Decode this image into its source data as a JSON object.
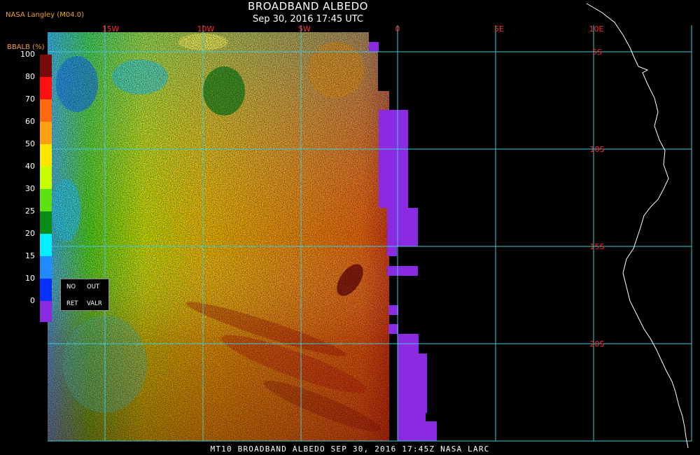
{
  "header": {
    "title": "BROADBAND ALBEDO",
    "subtitle": "Sep 30, 2016 17:45 UTC",
    "producer": "NASA Langley (M04.0)"
  },
  "footer": {
    "text": "MT10  BROADBAND ALBEDO  SEP 30, 2016 17:45Z  NASA LARC"
  },
  "grid": {
    "longitude_labels": [
      "15W",
      "10W",
      "5W",
      "0",
      "5E",
      "10E"
    ],
    "latitude_labels": [
      "5S",
      "10S",
      "15S",
      "20S"
    ]
  },
  "colorbar": {
    "title": "BBALB (%)",
    "ticks": [
      "100",
      "80",
      "70",
      "60",
      "50",
      "40",
      "30",
      "25",
      "20",
      "15",
      "10",
      "0"
    ],
    "colors": [
      "#7a0a0a",
      "#ff1010",
      "#ff6a10",
      "#ffa010",
      "#ffe800",
      "#c8ff00",
      "#5fe010",
      "#0a8c1a",
      "#00f0ff",
      "#1e8cff",
      "#0a30ff",
      "#8a2be2"
    ]
  },
  "legend": {
    "no_ret": [
      "NO",
      "RET"
    ],
    "out_valr": [
      "OUT",
      "VALR"
    ]
  },
  "colors": {
    "grid_line": "#3fc8d8",
    "label_red": "#ff2a2a",
    "no_retrieval": "#8a2be2",
    "coastline": "#ffffff"
  }
}
